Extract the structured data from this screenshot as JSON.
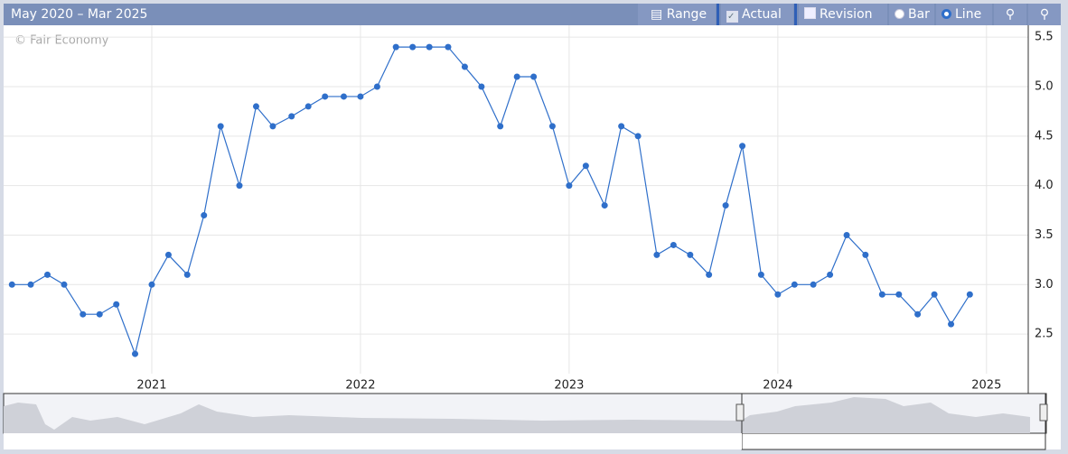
{
  "header": {
    "title": "May 2020 – Mar 2025"
  },
  "toolbar": {
    "range": "Range",
    "actual": {
      "label": "Actual",
      "checked": true
    },
    "revision": {
      "label": "Revision",
      "checked": false
    },
    "bar": {
      "label": "Bar",
      "selected": false
    },
    "line": {
      "label": "Line",
      "selected": true
    }
  },
  "chart_data": {
    "type": "line",
    "credit": "© Fair Economy",
    "x": [
      2020.33,
      2020.42,
      2020.5,
      2020.58,
      2020.67,
      2020.75,
      2020.83,
      2020.92,
      2021,
      2021.08,
      2021.17,
      2021.25,
      2021.33,
      2021.42,
      2021.5,
      2021.58,
      2021.67,
      2021.75,
      2021.83,
      2021.92,
      2022,
      2022.08,
      2022.17,
      2022.25,
      2022.33,
      2022.42,
      2022.5,
      2022.58,
      2022.67,
      2022.75,
      2022.83,
      2022.92,
      2023,
      2023.08,
      2023.17,
      2023.25,
      2023.33,
      2023.42,
      2023.5,
      2023.58,
      2023.67,
      2023.75,
      2023.83,
      2023.92,
      2024,
      2024.08,
      2024.17,
      2024.25,
      2024.33,
      2024.42,
      2024.5,
      2024.58,
      2024.67,
      2024.75,
      2024.83,
      2024.92
    ],
    "series": [
      {
        "name": "Actual",
        "color": "#2f6fca",
        "values": [
          3.0,
          3.0,
          3.1,
          3.0,
          2.7,
          2.7,
          2.8,
          2.3,
          3.0,
          3.3,
          3.1,
          3.7,
          4.6,
          4.0,
          4.8,
          4.6,
          4.7,
          4.8,
          4.9,
          4.9,
          4.9,
          5.0,
          5.4,
          5.4,
          5.4,
          5.4,
          5.2,
          5.0,
          4.6,
          5.1,
          5.1,
          4.6,
          4.0,
          4.2,
          3.8,
          4.6,
          4.5,
          3.3,
          3.4,
          3.3,
          3.1,
          3.8,
          4.4,
          3.1,
          2.9,
          3.0,
          3.0,
          3.1,
          3.5,
          3.3,
          2.9,
          2.9,
          2.7,
          2.9,
          2.6,
          2.9
        ]
      }
    ],
    "xlim": [
      2020.29,
      2025.2
    ],
    "xticks": [
      2021,
      2022,
      2023,
      2024,
      2025
    ],
    "ylim": [
      2.1,
      5.62
    ],
    "yticks": [
      2.5,
      {
        "value": 3,
        "label": "3.0"
      },
      3.5,
      {
        "value": 4,
        "label": "4.0"
      },
      4.5,
      {
        "value": 5,
        "label": "5.0"
      },
      5.5
    ],
    "grid": true
  }
}
